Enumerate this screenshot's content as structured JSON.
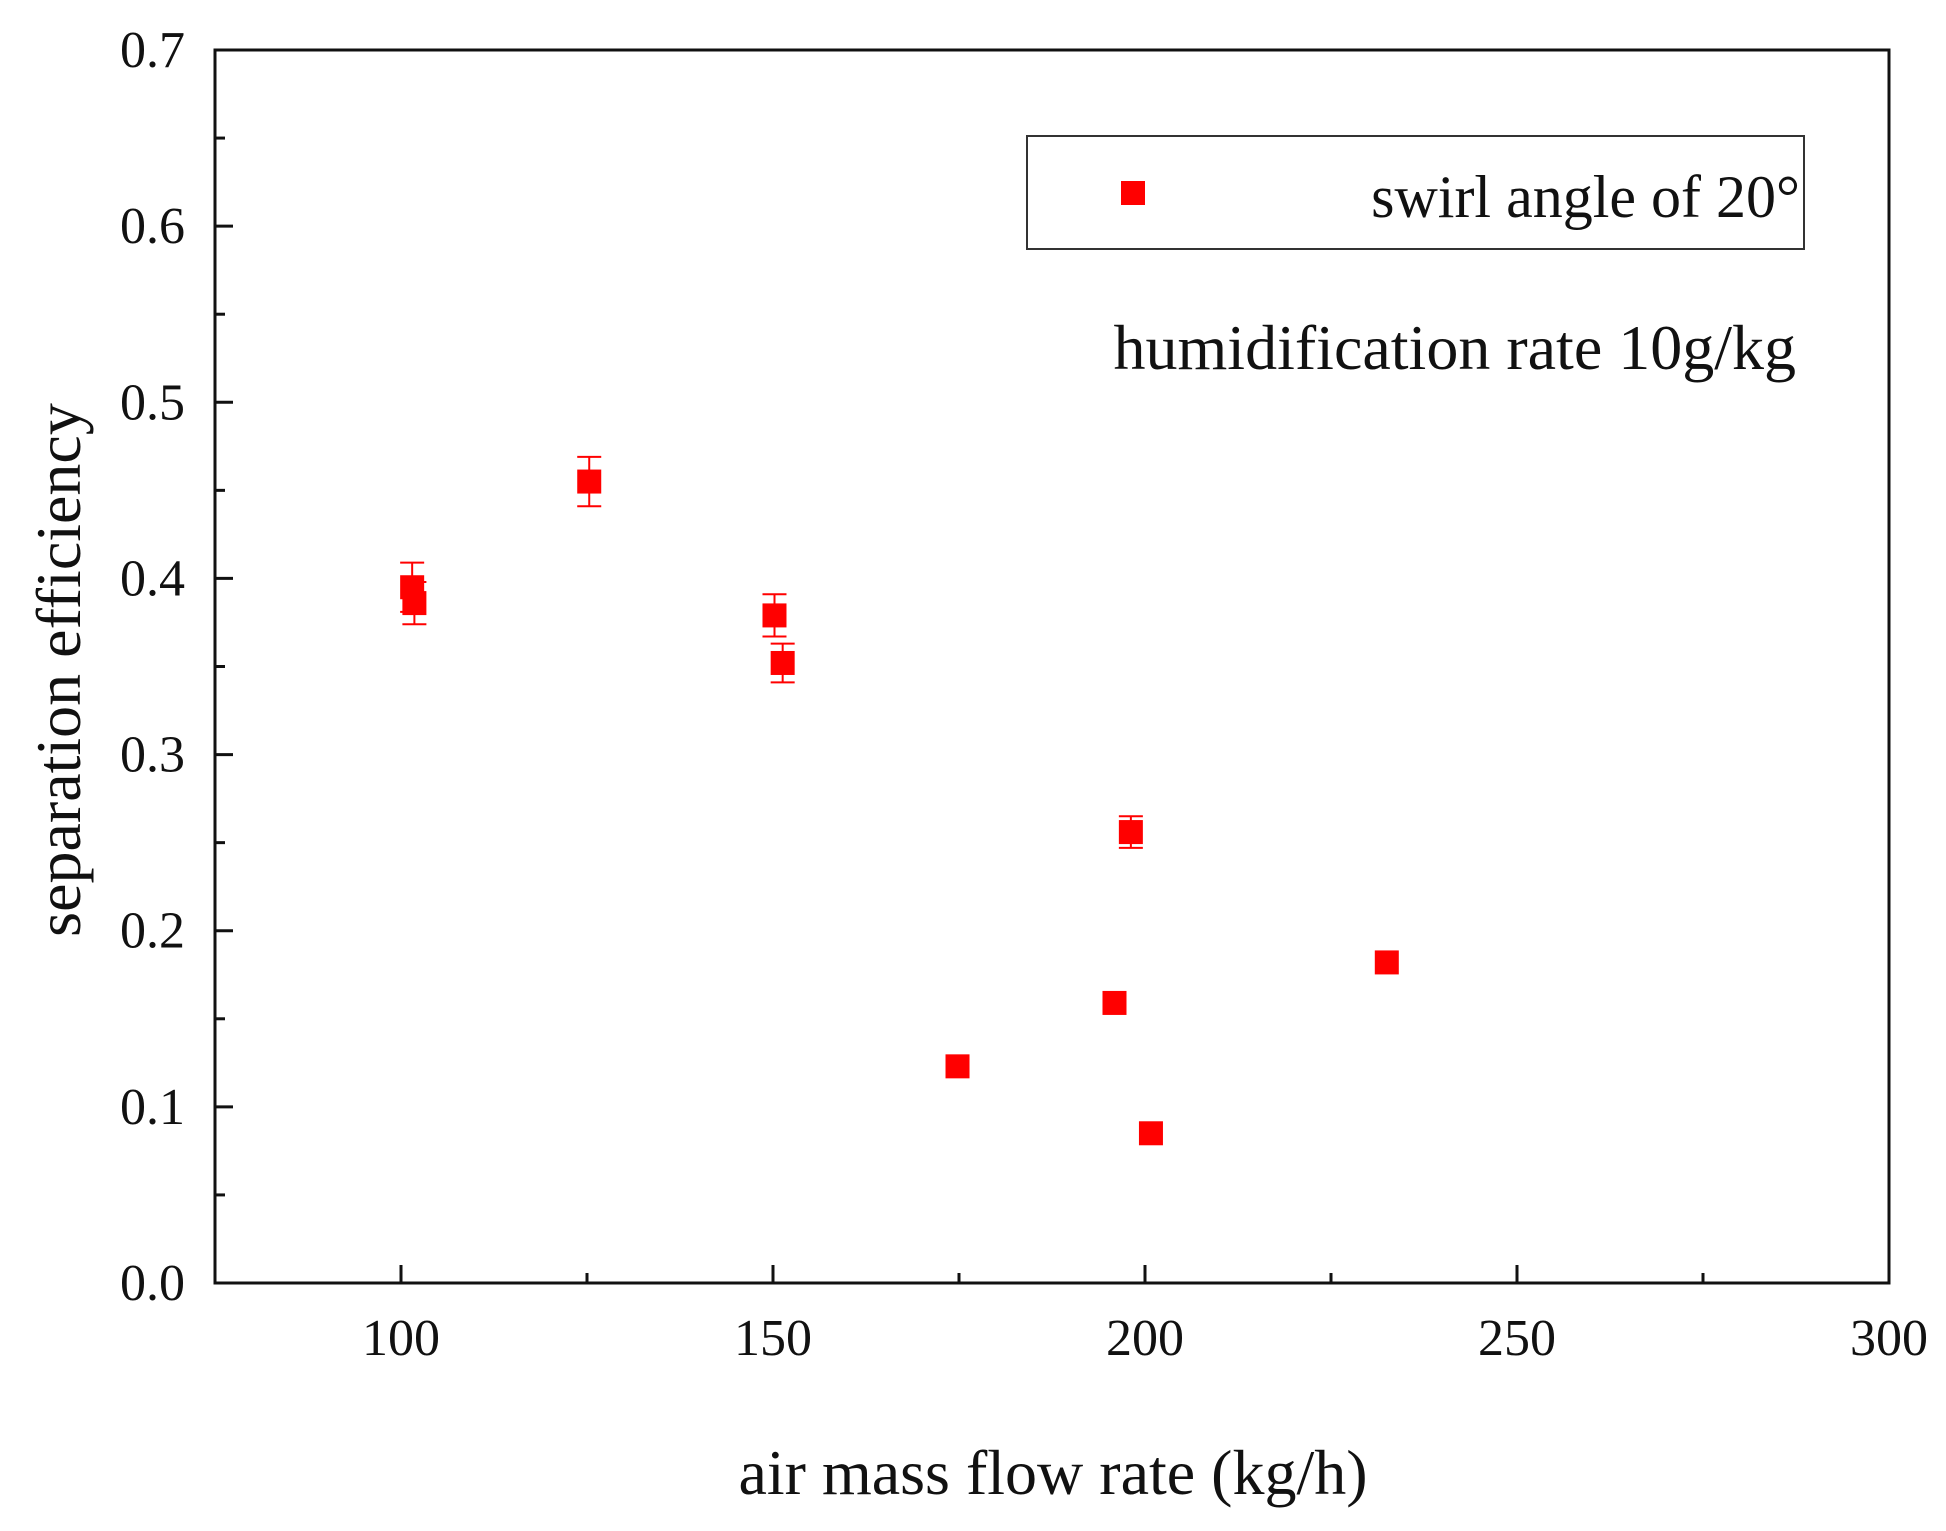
{
  "chart_data": {
    "type": "scatter",
    "title": "",
    "xlabel": "air mass flow rate (kg/h)",
    "ylabel": "separation efficiency",
    "xlim": [
      75,
      300
    ],
    "ylim": [
      0.0,
      0.7
    ],
    "x_ticks": [
      100,
      150,
      200,
      250,
      300
    ],
    "x_minor_ticks": [
      75,
      125,
      175,
      225,
      275
    ],
    "y_ticks": [
      "0.0",
      "0.1",
      "0.2",
      "0.3",
      "0.4",
      "0.5",
      "0.6",
      "0.7"
    ],
    "y_minor_step": 0.05,
    "grid": false,
    "legend_position": "top-right",
    "annotation": "humidification rate 10g/kg",
    "series": [
      {
        "name": "swirl angle of 20°",
        "color": "#ff0000",
        "marker": "square",
        "points": [
          {
            "x": 101.5,
            "y": 0.395,
            "err": 0.014
          },
          {
            "x": 101.8,
            "y": 0.386,
            "err": 0.012
          },
          {
            "x": 125.3,
            "y": 0.455,
            "err": 0.014
          },
          {
            "x": 150.2,
            "y": 0.379,
            "err": 0.012
          },
          {
            "x": 151.3,
            "y": 0.352,
            "err": 0.011
          },
          {
            "x": 174.8,
            "y": 0.123,
            "err": 0
          },
          {
            "x": 195.9,
            "y": 0.159,
            "err": 0
          },
          {
            "x": 198.1,
            "y": 0.256,
            "err": 0.009
          },
          {
            "x": 200.8,
            "y": 0.085,
            "err": 0
          },
          {
            "x": 232.5,
            "y": 0.182,
            "err": 0
          }
        ]
      }
    ]
  }
}
